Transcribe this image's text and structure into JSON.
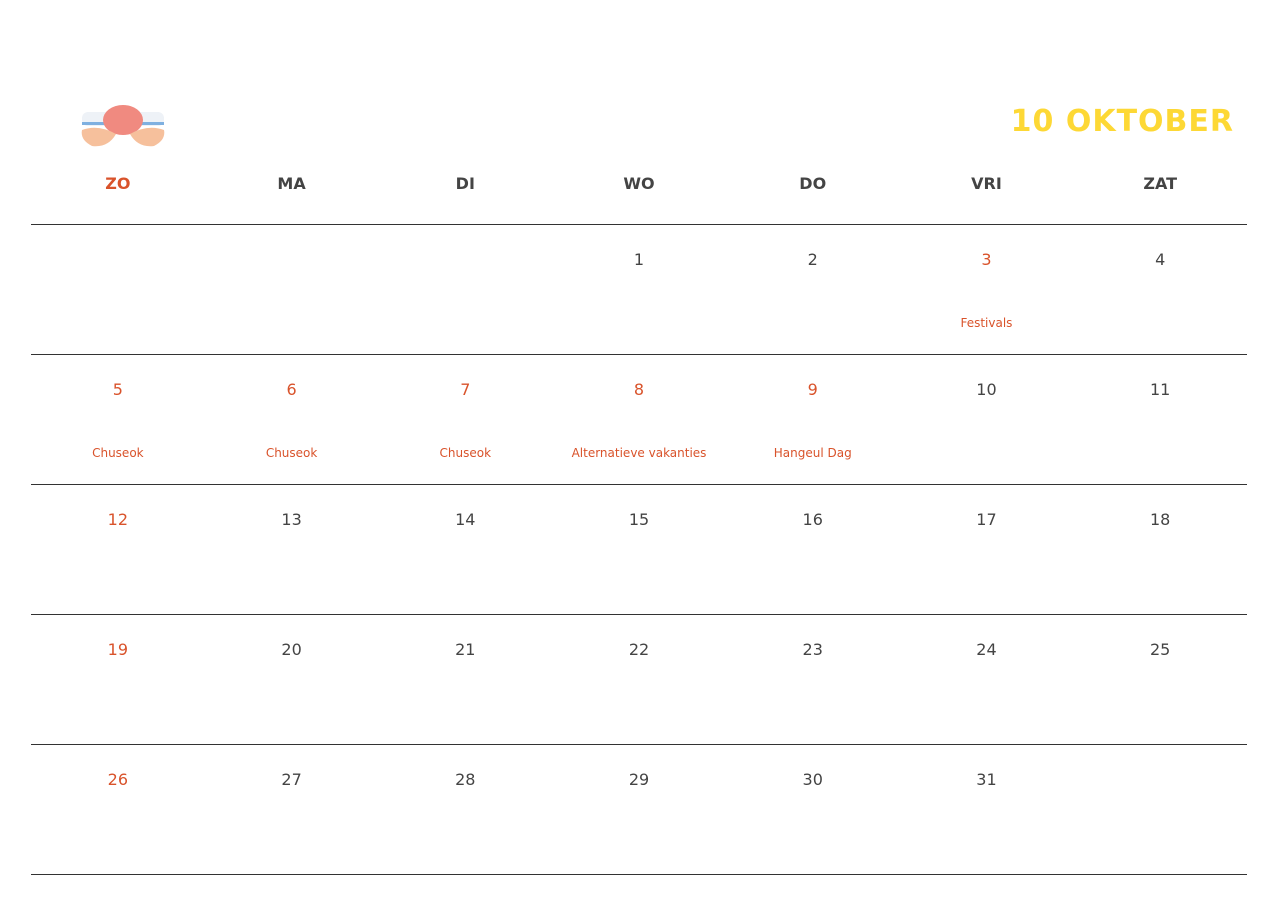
{
  "header": {
    "title": "10 OKTOBER",
    "logo": "hands-holding-brain"
  },
  "colors": {
    "accent": "#d9532b",
    "title": "#fdd835",
    "text": "#444444"
  },
  "weekdays": [
    "ZO",
    "MA",
    "DI",
    "WO",
    "DO",
    "VRI",
    "ZAT"
  ],
  "weeks": [
    [
      {
        "d": ""
      },
      {
        "d": ""
      },
      {
        "d": ""
      },
      {
        "d": "1"
      },
      {
        "d": "2"
      },
      {
        "d": "3",
        "holiday": true,
        "event": "Festivals"
      },
      {
        "d": "4"
      }
    ],
    [
      {
        "d": "5",
        "holiday": true,
        "event": "Chuseok"
      },
      {
        "d": "6",
        "holiday": true,
        "event": "Chuseok"
      },
      {
        "d": "7",
        "holiday": true,
        "event": "Chuseok"
      },
      {
        "d": "8",
        "holiday": true,
        "event": "Alternatieve vakanties"
      },
      {
        "d": "9",
        "holiday": true,
        "event": "Hangeul Dag"
      },
      {
        "d": "10"
      },
      {
        "d": "11"
      }
    ],
    [
      {
        "d": "12",
        "holiday": true
      },
      {
        "d": "13"
      },
      {
        "d": "14"
      },
      {
        "d": "15"
      },
      {
        "d": "16"
      },
      {
        "d": "17"
      },
      {
        "d": "18"
      }
    ],
    [
      {
        "d": "19",
        "holiday": true
      },
      {
        "d": "20"
      },
      {
        "d": "21"
      },
      {
        "d": "22"
      },
      {
        "d": "23"
      },
      {
        "d": "24"
      },
      {
        "d": "25"
      }
    ],
    [
      {
        "d": "26",
        "holiday": true
      },
      {
        "d": "27"
      },
      {
        "d": "28"
      },
      {
        "d": "29"
      },
      {
        "d": "30"
      },
      {
        "d": "31"
      },
      {
        "d": ""
      }
    ]
  ]
}
